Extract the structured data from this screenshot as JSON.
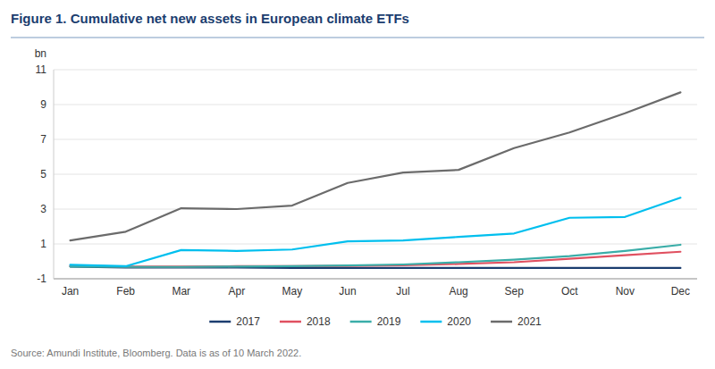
{
  "chart_data": {
    "type": "line",
    "title": "Figure 1. Cumulative net new assets in European climate ETFs",
    "ylabel": "bn",
    "source": "Source: Amundi Institute, Bloomberg. Data is as of 10 March 2022.",
    "categories": [
      "Jan",
      "Feb",
      "Mar",
      "Apr",
      "May",
      "Jun",
      "Jul",
      "Aug",
      "Sep",
      "Oct",
      "Nov",
      "Dec"
    ],
    "series": [
      {
        "name": "2017",
        "color": "#1b3d6f",
        "values": [
          -0.3,
          -0.35,
          -0.35,
          -0.35,
          -0.38,
          -0.38,
          -0.38,
          -0.38,
          -0.38,
          -0.38,
          -0.38,
          -0.38
        ]
      },
      {
        "name": "2018",
        "color": "#e05060",
        "values": [
          -0.25,
          -0.3,
          -0.3,
          -0.28,
          -0.28,
          -0.26,
          -0.22,
          -0.15,
          -0.05,
          0.15,
          0.35,
          0.55
        ]
      },
      {
        "name": "2019",
        "color": "#3aada8",
        "values": [
          -0.3,
          -0.32,
          -0.32,
          -0.3,
          -0.28,
          -0.24,
          -0.18,
          -0.05,
          0.1,
          0.3,
          0.6,
          0.95
        ]
      },
      {
        "name": "2020",
        "color": "#00bfee",
        "values": [
          -0.2,
          -0.28,
          0.65,
          0.6,
          0.68,
          1.15,
          1.2,
          1.4,
          1.6,
          2.5,
          2.55,
          3.65
        ]
      },
      {
        "name": "2021",
        "color": "#6b6b6b",
        "values": [
          1.2,
          1.7,
          3.05,
          3.0,
          3.2,
          4.5,
          5.1,
          5.25,
          6.5,
          7.4,
          8.5,
          9.7
        ]
      }
    ],
    "ylim": [
      -1,
      11
    ],
    "yticks": [
      -1,
      1,
      3,
      5,
      7,
      9,
      11
    ],
    "grid": true,
    "legend": "bottom"
  }
}
